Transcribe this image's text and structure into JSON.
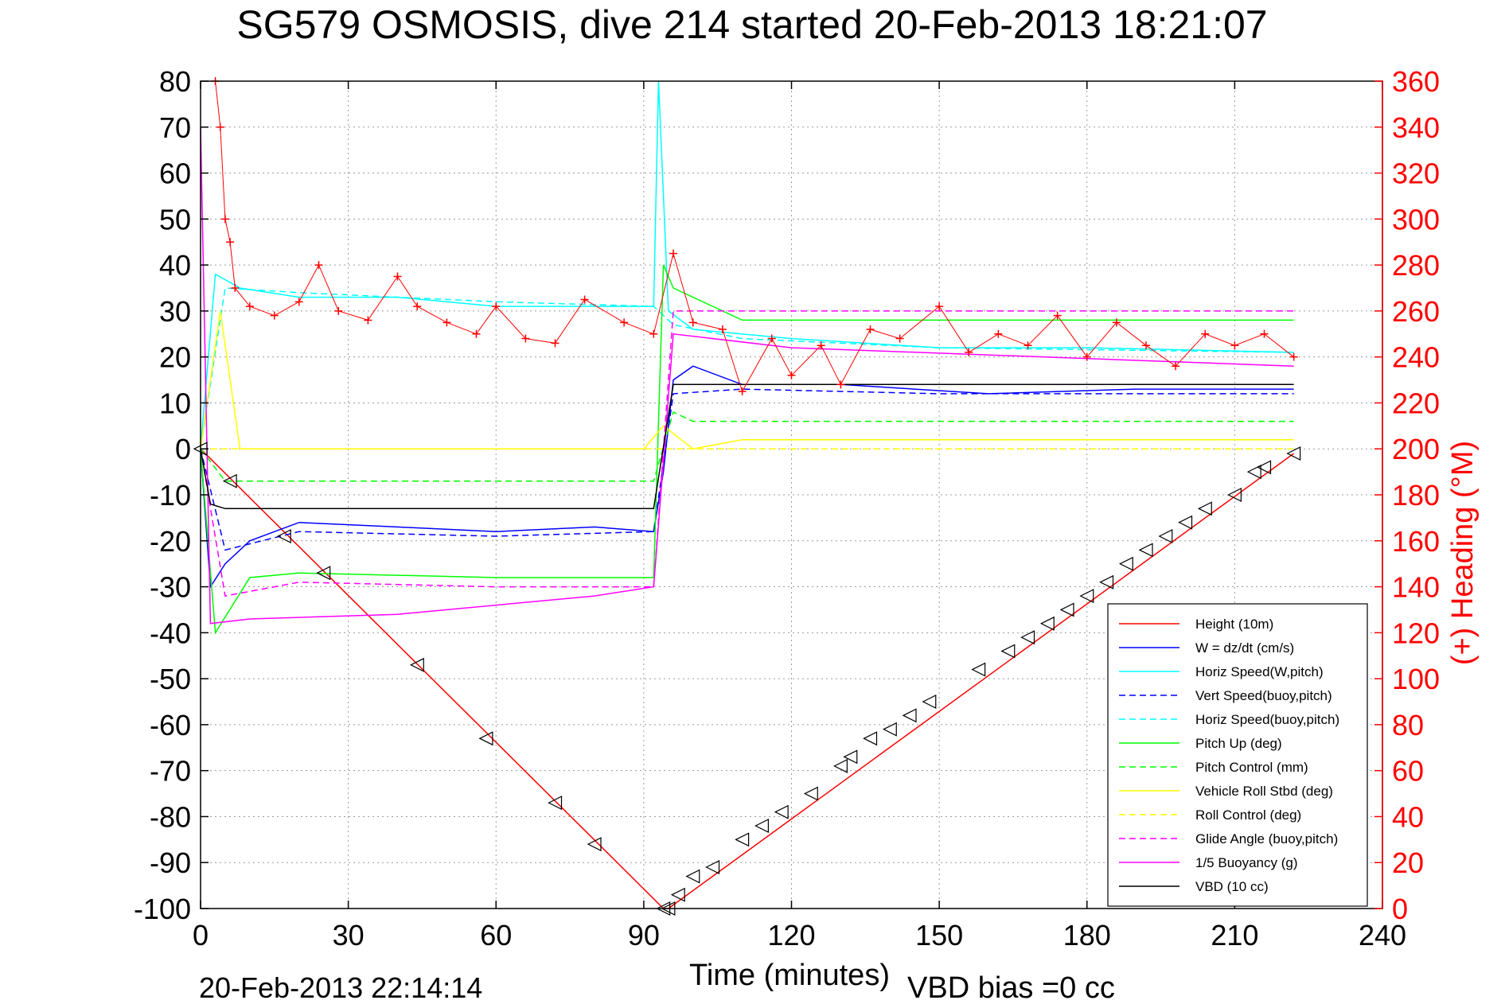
{
  "chart_data": {
    "type": "line",
    "title": "SG579 OSMOSIS, dive 214 started 20-Feb-2013 18:21:07",
    "xlabel": "Time (minutes)",
    "ylabel_right": "(+) Heading (°M)",
    "timestamp": "20-Feb-2013 22:14:14",
    "vbd_bias": "VBD bias =0 cc",
    "xlim": [
      0,
      240
    ],
    "ylim_left": [
      -100,
      80
    ],
    "ylim_right": [
      0,
      360
    ],
    "xticks": [
      "0",
      "30",
      "60",
      "90",
      "120",
      "150",
      "180",
      "210",
      "240"
    ],
    "yticks_left": [
      "80",
      "70",
      "60",
      "50",
      "40",
      "30",
      "20",
      "10",
      "0",
      "-10",
      "-20",
      "-30",
      "-40",
      "-50",
      "-60",
      "-70",
      "-80",
      "-90",
      "-100"
    ],
    "yticks_right": [
      "360",
      "340",
      "320",
      "300",
      "280",
      "260",
      "240",
      "220",
      "200",
      "180",
      "160",
      "140",
      "120",
      "100",
      "80",
      "60",
      "40",
      "20",
      "0"
    ],
    "grid": true,
    "legend_position": "bottom-right",
    "colors": {
      "red": "#ff0000",
      "blue": "#0000ff",
      "cyan": "#00ffff",
      "green": "#00ff00",
      "yellow": "#ffff00",
      "magenta": "#ff00ff",
      "black": "#000000"
    },
    "series": [
      {
        "name": "Height (10m)",
        "color": "#ff0000",
        "style": "solid",
        "x": [
          0,
          94,
          95,
          222
        ],
        "y": [
          0,
          -100,
          -100,
          -1
        ]
      },
      {
        "name": "W = dz/dt (cm/s)",
        "color": "#0000ff",
        "style": "solid",
        "x": [
          0,
          2,
          5,
          10,
          20,
          40,
          60,
          80,
          92,
          94,
          96,
          100,
          110,
          130,
          160,
          190,
          222
        ],
        "y": [
          0,
          -30,
          -25,
          -20,
          -16,
          -17,
          -18,
          -17,
          -18,
          -5,
          15,
          18,
          14,
          14,
          12,
          13,
          13
        ]
      },
      {
        "name": "Horiz Speed(W,pitch)",
        "color": "#00ffff",
        "style": "solid",
        "x": [
          0,
          3,
          8,
          20,
          40,
          60,
          80,
          92,
          93,
          95,
          100,
          120,
          150,
          180,
          222
        ],
        "y": [
          0,
          38,
          35,
          33,
          33,
          31,
          31,
          31,
          80,
          30,
          26,
          24,
          22,
          22,
          21
        ]
      },
      {
        "name": "Vert Speed(buoy,pitch)",
        "color": "#0000ff",
        "style": "dashed",
        "x": [
          0,
          5,
          20,
          60,
          92,
          96,
          110,
          150,
          222
        ],
        "y": [
          0,
          -22,
          -18,
          -19,
          -18,
          12,
          13,
          12,
          12
        ]
      },
      {
        "name": "Horiz Speed(buoy,pitch)",
        "color": "#00ffff",
        "style": "dashed",
        "x": [
          0,
          5,
          20,
          60,
          92,
          96,
          110,
          150,
          222
        ],
        "y": [
          0,
          35,
          34,
          32,
          31,
          27,
          24,
          22,
          21
        ]
      },
      {
        "name": "Pitch Up (deg)",
        "color": "#00ff00",
        "style": "solid",
        "x": [
          0,
          3,
          10,
          20,
          60,
          92,
          94,
          96,
          110,
          150,
          222
        ],
        "y": [
          0,
          -40,
          -28,
          -27,
          -28,
          -28,
          40,
          35,
          28,
          28,
          28
        ]
      },
      {
        "name": "Pitch Control (mm)",
        "color": "#00ff00",
        "style": "dashed",
        "x": [
          0,
          5,
          92,
          96,
          100,
          222
        ],
        "y": [
          0,
          -7,
          -7,
          8,
          6,
          6
        ]
      },
      {
        "name": "Vehicle Roll Stbd (deg)",
        "color": "#ffff00",
        "style": "solid",
        "x": [
          0,
          4,
          8,
          20,
          60,
          90,
          94,
          100,
          110,
          150,
          222
        ],
        "y": [
          0,
          30,
          0,
          0,
          0,
          0,
          5,
          0,
          2,
          2,
          2
        ]
      },
      {
        "name": "Roll Control (deg)",
        "color": "#ffff00",
        "style": "dashed",
        "x": [
          0,
          222
        ],
        "y": [
          0,
          0
        ]
      },
      {
        "name": "Glide Angle (buoy,pitch)",
        "color": "#ff00ff",
        "style": "dashed",
        "x": [
          0,
          5,
          20,
          60,
          92,
          96,
          110,
          222
        ],
        "y": [
          0,
          -32,
          -29,
          -30,
          -30,
          30,
          30,
          30
        ]
      },
      {
        "name": "1/5 Buoyancy (g)",
        "color": "#ff00ff",
        "style": "solid",
        "x": [
          0,
          2,
          10,
          40,
          80,
          92,
          96,
          120,
          222
        ],
        "y": [
          70,
          -38,
          -37,
          -36,
          -32,
          -30,
          25,
          22,
          18
        ]
      },
      {
        "name": "VBD (10 cc)",
        "color": "#000000",
        "style": "solid",
        "x": [
          0,
          2,
          5,
          92,
          96,
          222
        ],
        "y": [
          0,
          -12,
          -13,
          -13,
          14,
          14
        ]
      }
    ],
    "heading_series": {
      "name": "(+) Heading",
      "color": "#ff0000",
      "x": [
        3,
        4,
        5,
        6,
        7,
        10,
        15,
        20,
        24,
        28,
        34,
        40,
        44,
        50,
        56,
        60,
        66,
        72,
        78,
        86,
        92,
        96,
        100,
        106,
        110,
        116,
        120,
        126,
        130,
        136,
        142,
        150,
        156,
        162,
        168,
        174,
        180,
        186,
        192,
        198,
        204,
        210,
        216,
        222
      ],
      "y": [
        360,
        340,
        300,
        290,
        270,
        262,
        258,
        264,
        280,
        260,
        256,
        275,
        262,
        255,
        250,
        262,
        248,
        246,
        265,
        255,
        250,
        285,
        255,
        252,
        225,
        248,
        232,
        245,
        228,
        252,
        248,
        262,
        242,
        250,
        245,
        258,
        240,
        255,
        245,
        236,
        250,
        245,
        250,
        240
      ]
    },
    "markers": {
      "symbol": "triangle",
      "x": [
        0,
        6,
        17,
        25,
        44,
        58,
        72,
        80,
        94,
        95,
        97,
        100,
        104,
        110,
        114,
        118,
        124,
        130,
        132,
        136,
        140,
        144,
        148,
        158,
        164,
        168,
        172,
        176,
        180,
        184,
        188,
        192,
        196,
        200,
        204,
        210,
        214,
        216,
        222
      ],
      "y": [
        0,
        -7,
        -19,
        -27,
        -47,
        -63,
        -77,
        -86,
        -100,
        -100,
        -97,
        -93,
        -91,
        -85,
        -82,
        -79,
        -75,
        -69,
        -67,
        -63,
        -61,
        -58,
        -55,
        -48,
        -44,
        -41,
        -38,
        -35,
        -32,
        -29,
        -25,
        -22,
        -19,
        -16,
        -13,
        -10,
        -5,
        -4,
        -1
      ]
    }
  }
}
